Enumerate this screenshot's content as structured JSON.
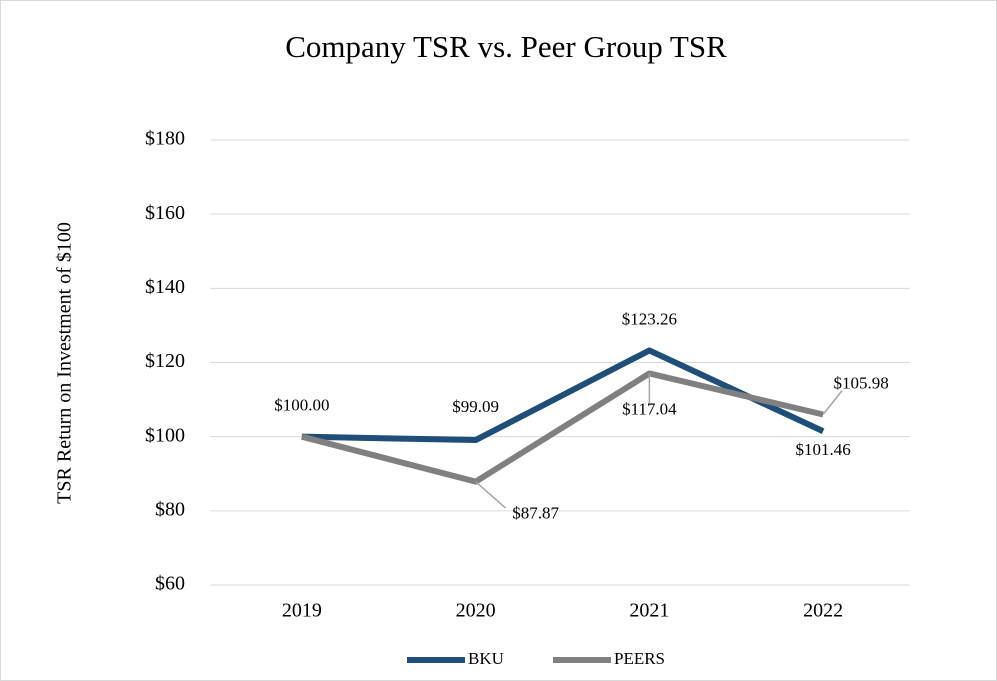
{
  "chart_data": {
    "type": "line",
    "title": "Company TSR vs. Peer Group TSR",
    "y_label": "TSR Return on Investment of $100",
    "categories": [
      "2019",
      "2020",
      "2021",
      "2022"
    ],
    "series": [
      {
        "name": "BKU",
        "color": "#1f4e79",
        "values": [
          100.0,
          99.09,
          123.26,
          101.46
        ],
        "value_labels": [
          "$100.00",
          "$99.09",
          "$123.26",
          "$101.46"
        ]
      },
      {
        "name": "PEERS",
        "color": "#808080",
        "values": [
          100.0,
          87.87,
          117.04,
          105.98
        ],
        "value_labels": [
          null,
          "$87.87",
          "$117.04",
          "$105.98"
        ]
      }
    ],
    "ylim": [
      60,
      180
    ],
    "yticks": [
      {
        "value": 60,
        "label": "$60"
      },
      {
        "value": 80,
        "label": "$80"
      },
      {
        "value": 100,
        "label": "$100"
      },
      {
        "value": 120,
        "label": "$120"
      },
      {
        "value": 140,
        "label": "$140"
      },
      {
        "value": 160,
        "label": "$160"
      },
      {
        "value": 180,
        "label": "$180"
      }
    ],
    "grid": true,
    "legend": "bottom"
  }
}
